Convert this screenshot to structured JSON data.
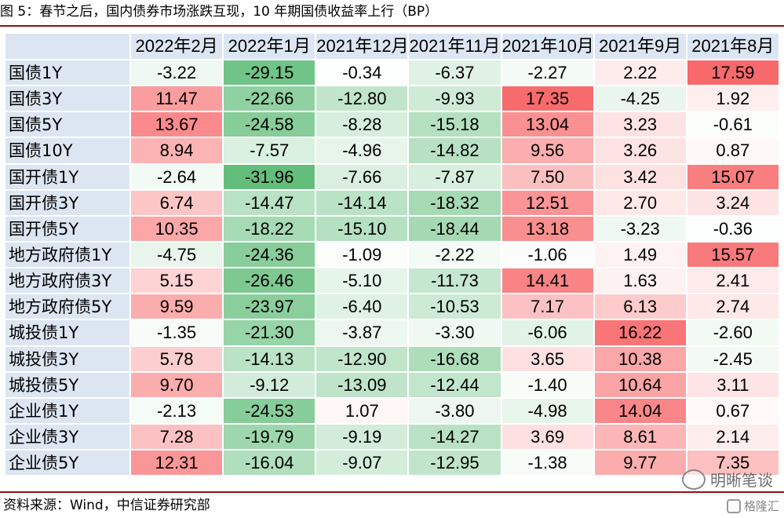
{
  "title": "图 5：春节之后，国内债券市场涨跌互现，10 年期国债收益率上行（BP）",
  "source": "资料来源：Wind，中信证券研究部",
  "watermark": {
    "text": "明晰笔谈",
    "icon": "wechat-icon",
    "logo_text": "格隆汇",
    "logo_icon": "gelonghui-logo-icon"
  },
  "colors": {
    "rule": "#9b0d14",
    "header_bg": "#dce6f2",
    "positive_max": "#f8696b",
    "negative_max": "#63be7b",
    "neutral": "#ffffff"
  },
  "chart_data": {
    "type": "heatmap",
    "title": "图 5：春节之后，国内债券市场涨跌互现，10 年期国债收益率上行（BP）",
    "columns": [
      "2022年2月",
      "2022年1月",
      "2021年12月",
      "2021年11月",
      "2021年10月",
      "2021年9月",
      "2021年8月"
    ],
    "rows": [
      {
        "label": "国债1Y",
        "values": [
          -3.22,
          -29.15,
          -0.34,
          -6.37,
          -2.27,
          2.22,
          17.59
        ]
      },
      {
        "label": "国债3Y",
        "values": [
          11.47,
          -22.66,
          -12.8,
          -9.93,
          17.35,
          -4.25,
          1.92
        ]
      },
      {
        "label": "国债5Y",
        "values": [
          13.67,
          -24.58,
          -8.28,
          -15.18,
          13.04,
          3.23,
          -0.61
        ]
      },
      {
        "label": "国债10Y",
        "values": [
          8.94,
          -7.57,
          -4.96,
          -14.82,
          9.56,
          3.26,
          0.87
        ]
      },
      {
        "label": "国开债1Y",
        "values": [
          -2.64,
          -31.96,
          -7.66,
          -7.87,
          7.5,
          3.42,
          15.07
        ]
      },
      {
        "label": "国开债3Y",
        "values": [
          6.74,
          -14.47,
          -14.14,
          -18.32,
          12.51,
          2.7,
          3.24
        ]
      },
      {
        "label": "国开债5Y",
        "values": [
          10.35,
          -18.22,
          -15.1,
          -18.44,
          13.18,
          -3.23,
          -0.36
        ]
      },
      {
        "label": "地方政府债1Y",
        "values": [
          -4.75,
          -24.36,
          -1.09,
          -2.22,
          -1.06,
          1.49,
          15.57
        ]
      },
      {
        "label": "地方政府债3Y",
        "values": [
          5.15,
          -26.46,
          -5.1,
          -11.73,
          14.41,
          1.63,
          2.41
        ]
      },
      {
        "label": "地方政府债5Y",
        "values": [
          9.59,
          -23.97,
          -6.4,
          -10.53,
          7.17,
          6.13,
          2.74
        ]
      },
      {
        "label": "城投债1Y",
        "values": [
          -1.35,
          -21.3,
          -3.87,
          -3.3,
          -6.06,
          16.22,
          -2.6
        ]
      },
      {
        "label": "城投债3Y",
        "values": [
          5.78,
          -14.13,
          -12.9,
          -16.68,
          3.65,
          10.38,
          -2.45
        ]
      },
      {
        "label": "城投债5Y",
        "values": [
          9.7,
          -9.12,
          -13.09,
          -12.44,
          -1.4,
          10.64,
          3.11
        ]
      },
      {
        "label": "企业债1Y",
        "values": [
          -2.13,
          -24.53,
          1.07,
          -3.8,
          -4.98,
          14.04,
          0.67
        ]
      },
      {
        "label": "企业债3Y",
        "values": [
          7.28,
          -19.79,
          -9.19,
          -14.27,
          3.69,
          8.61,
          2.14
        ]
      },
      {
        "label": "企业债5Y",
        "values": [
          12.31,
          -16.04,
          -9.07,
          -12.95,
          -1.38,
          9.77,
          7.35
        ]
      }
    ]
  }
}
